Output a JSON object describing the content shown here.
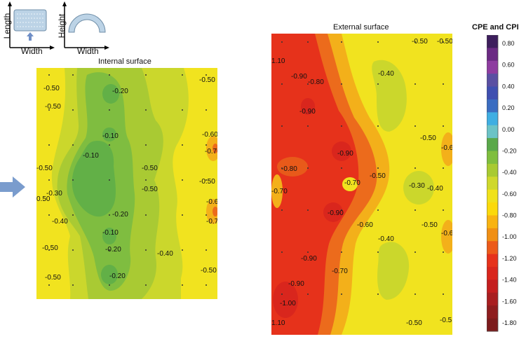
{
  "schematic": {
    "plan": {
      "axis_vertical": "Length",
      "axis_horizontal": "Width"
    },
    "section": {
      "axis_vertical": "Height",
      "axis_horizontal": "Width"
    }
  },
  "internal": {
    "title": "Internal surface",
    "labels": [
      "-0.50",
      "-0.50",
      "-0.20",
      "-0.50",
      "-0.10",
      "-0.10",
      "-0.60",
      "-0.70",
      "-0.50",
      "-0.50",
      "-0.30",
      "0.50",
      "-0.50",
      "-0.40",
      "-0.20",
      "-0.50",
      "-0.60",
      "-0.70",
      "-0.10",
      "-0.20",
      "-0.50",
      "-0.40",
      "-0.50",
      "-0.20",
      "-0.50"
    ]
  },
  "external": {
    "title": "External surface",
    "labels": [
      "-0.50",
      "-0.50",
      "1.10",
      "-0.90",
      "-0.80",
      "-0.40",
      "-0.90",
      "-0.90",
      "-0.50",
      "-0.6",
      "-0.80",
      "-0.70",
      "-0.70",
      "-0.50",
      "-0.30",
      "-0.40",
      "-0.90",
      "-0.60",
      "-0.50",
      "-0.6",
      "-0.40",
      "-0.90",
      "-0.70",
      "-0.90",
      "-1.00",
      "1.10",
      "-0.50",
      "-0.5"
    ]
  },
  "colorbar": {
    "title": "CPE and CPI",
    "ticks": [
      "0.80",
      "0.60",
      "0.40",
      "0.20",
      "0.00",
      "-0.20",
      "-0.40",
      "-0.60",
      "-0.80",
      "-1.00",
      "-1.20",
      "-1.40",
      "-1.60",
      "-1.80"
    ],
    "colors": [
      "#3d1e5c",
      "#6b2a83",
      "#8e3ca0",
      "#5a4fa2",
      "#3f4fb0",
      "#3b6dc1",
      "#3faee2",
      "#6cc3c6",
      "#5aa84a",
      "#7fbe3e",
      "#a8ca32",
      "#cfd82c",
      "#f0e11b",
      "#fbd90b",
      "#f8b312",
      "#f08f14",
      "#ec5a19",
      "#e6321b",
      "#d9261d",
      "#c41e1f",
      "#a81e20",
      "#8e1d1e",
      "#7c1b1c"
    ],
    "color_scale_meaning": "bluish = positive pressure coefficients, red = strong suction"
  }
}
